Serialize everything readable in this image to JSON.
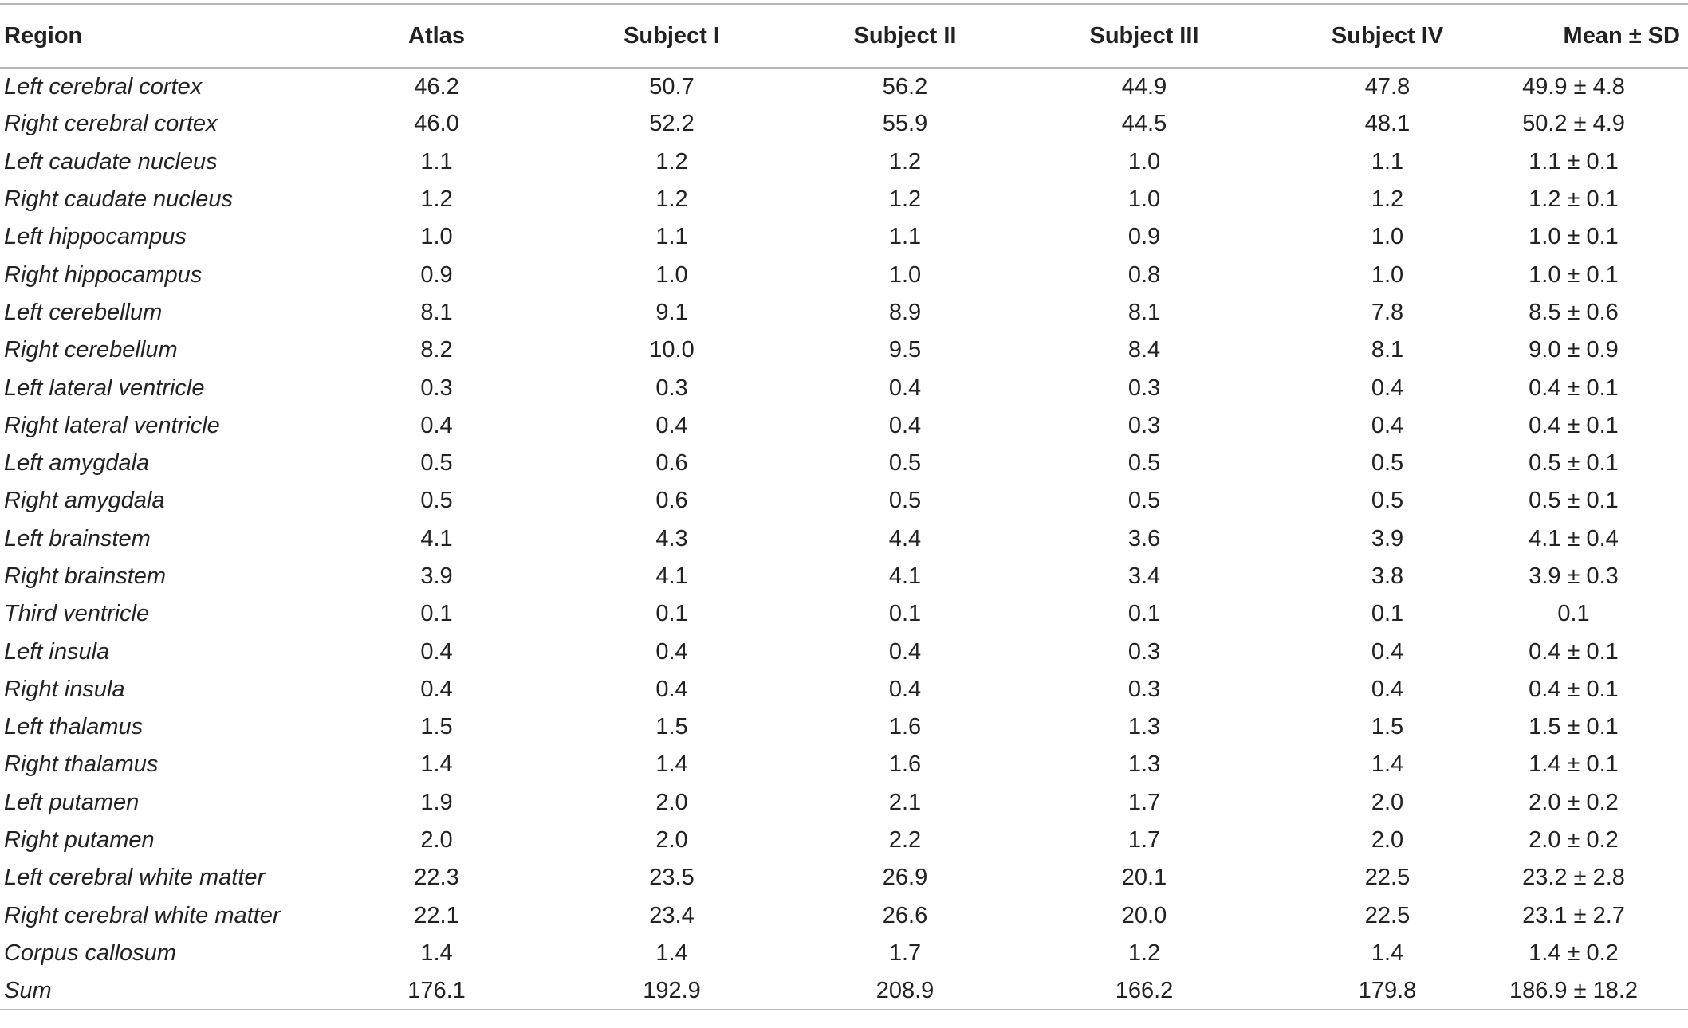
{
  "table": {
    "headers": [
      "Region",
      "Atlas",
      "Subject I",
      "Subject II",
      "Subject III",
      "Subject IV",
      "Mean ± SD"
    ],
    "rows": [
      [
        "Left cerebral cortex",
        "46.2",
        "50.7",
        "56.2",
        "44.9",
        "47.8",
        "49.9 ± 4.8"
      ],
      [
        "Right cerebral cortex",
        "46.0",
        "52.2",
        "55.9",
        "44.5",
        "48.1",
        "50.2 ± 4.9"
      ],
      [
        "Left caudate nucleus",
        "1.1",
        "1.2",
        "1.2",
        "1.0",
        "1.1",
        "1.1 ± 0.1"
      ],
      [
        "Right caudate nucleus",
        "1.2",
        "1.2",
        "1.2",
        "1.0",
        "1.2",
        "1.2 ± 0.1"
      ],
      [
        "Left hippocampus",
        "1.0",
        "1.1",
        "1.1",
        "0.9",
        "1.0",
        "1.0 ± 0.1"
      ],
      [
        "Right hippocampus",
        "0.9",
        "1.0",
        "1.0",
        "0.8",
        "1.0",
        "1.0 ± 0.1"
      ],
      [
        "Left cerebellum",
        "8.1",
        "9.1",
        "8.9",
        "8.1",
        "7.8",
        "8.5 ± 0.6"
      ],
      [
        "Right cerebellum",
        "8.2",
        "10.0",
        "9.5",
        "8.4",
        "8.1",
        "9.0 ± 0.9"
      ],
      [
        "Left lateral ventricle",
        "0.3",
        "0.3",
        "0.4",
        "0.3",
        "0.4",
        "0.4 ± 0.1"
      ],
      [
        "Right lateral ventricle",
        "0.4",
        "0.4",
        "0.4",
        "0.3",
        "0.4",
        "0.4 ± 0.1"
      ],
      [
        "Left amygdala",
        "0.5",
        "0.6",
        "0.5",
        "0.5",
        "0.5",
        "0.5 ± 0.1"
      ],
      [
        "Right amygdala",
        "0.5",
        "0.6",
        "0.5",
        "0.5",
        "0.5",
        "0.5 ± 0.1"
      ],
      [
        "Left brainstem",
        "4.1",
        "4.3",
        "4.4",
        "3.6",
        "3.9",
        "4.1 ± 0.4"
      ],
      [
        "Right brainstem",
        "3.9",
        "4.1",
        "4.1",
        "3.4",
        "3.8",
        "3.9 ± 0.3"
      ],
      [
        "Third ventricle",
        "0.1",
        "0.1",
        "0.1",
        "0.1",
        "0.1",
        "0.1"
      ],
      [
        "Left insula",
        "0.4",
        "0.4",
        "0.4",
        "0.3",
        "0.4",
        "0.4 ± 0.1"
      ],
      [
        "Right insula",
        "0.4",
        "0.4",
        "0.4",
        "0.3",
        "0.4",
        "0.4 ± 0.1"
      ],
      [
        "Left thalamus",
        "1.5",
        "1.5",
        "1.6",
        "1.3",
        "1.5",
        "1.5 ± 0.1"
      ],
      [
        "Right thalamus",
        "1.4",
        "1.4",
        "1.6",
        "1.3",
        "1.4",
        "1.4 ± 0.1"
      ],
      [
        "Left putamen",
        "1.9",
        "2.0",
        "2.1",
        "1.7",
        "2.0",
        "2.0 ± 0.2"
      ],
      [
        "Right putamen",
        "2.0",
        "2.0",
        "2.2",
        "1.7",
        "2.0",
        "2.0 ± 0.2"
      ],
      [
        "Left cerebral white matter",
        "22.3",
        "23.5",
        "26.9",
        "20.1",
        "22.5",
        "23.2 ± 2.8"
      ],
      [
        "Right cerebral white matter",
        "22.1",
        "23.4",
        "26.6",
        "20.0",
        "22.5",
        "23.1 ± 2.7"
      ],
      [
        "Corpus callosum",
        "1.4",
        "1.4",
        "1.7",
        "1.2",
        "1.4",
        "1.4 ± 0.2"
      ],
      [
        "Sum",
        "176.1",
        "192.9",
        "208.9",
        "166.2",
        "179.8",
        "186.9 ± 18.2"
      ]
    ]
  }
}
